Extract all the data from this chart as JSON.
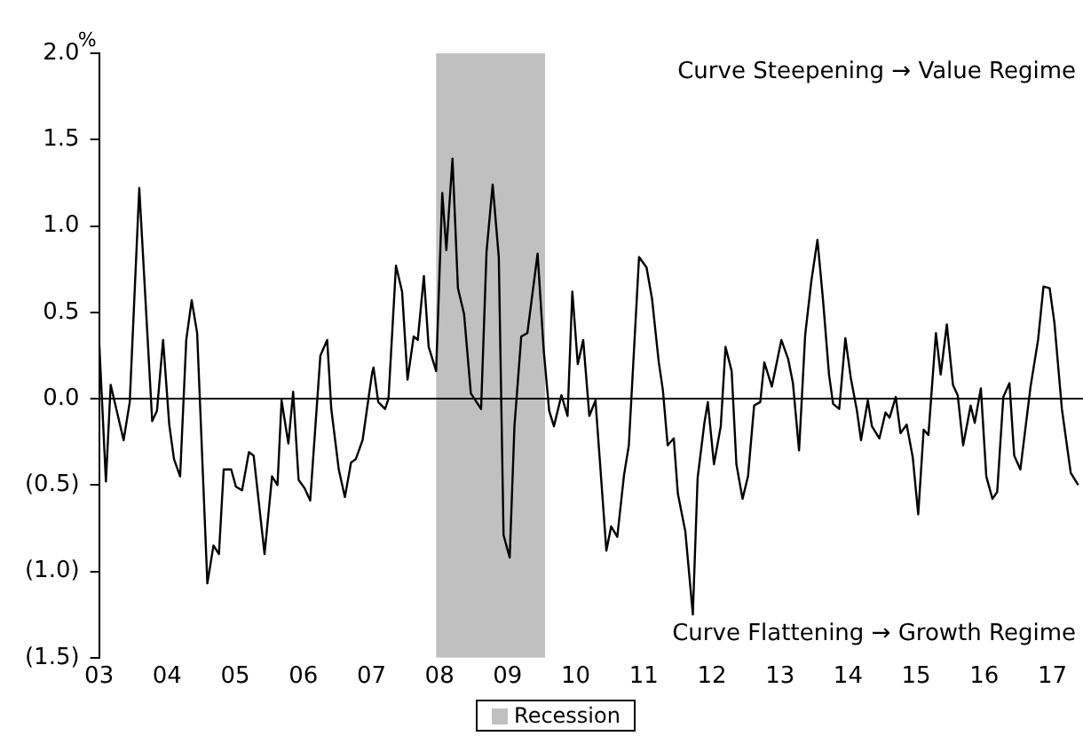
{
  "chart_data": {
    "type": "line",
    "ylabel": "%",
    "x": [
      2003.0,
      2003.1,
      2003.17,
      2003.36,
      2003.45,
      2003.59,
      2003.69,
      2003.78,
      2003.85,
      2003.94,
      2004.03,
      2004.1,
      2004.19,
      2004.28,
      2004.36,
      2004.44,
      2004.59,
      2004.68,
      2004.76,
      2004.83,
      2004.94,
      2005.01,
      2005.1,
      2005.2,
      2005.27,
      2005.43,
      2005.54,
      2005.62,
      2005.68,
      2005.78,
      2005.85,
      2005.93,
      2006.02,
      2006.1,
      2006.25,
      2006.35,
      2006.41,
      2006.52,
      2006.61,
      2006.7,
      2006.77,
      2006.87,
      2007.01,
      2007.03,
      2007.1,
      2007.2,
      2007.25,
      2007.36,
      2007.45,
      2007.53,
      2007.62,
      2007.68,
      2007.77,
      2007.84,
      2007.95,
      2008.04,
      2008.1,
      2008.19,
      2008.27,
      2008.36,
      2008.46,
      2008.61,
      2008.69,
      2008.78,
      2008.87,
      2008.94,
      2009.03,
      2009.1,
      2009.2,
      2009.29,
      2009.44,
      2009.53,
      2009.61,
      2009.68,
      2009.79,
      2009.88,
      2009.95,
      2010.03,
      2010.11,
      2010.2,
      2010.29,
      2010.45,
      2010.52,
      2010.61,
      2010.71,
      2010.78,
      2010.93,
      2011.04,
      2011.12,
      2011.22,
      2011.28,
      2011.35,
      2011.44,
      2011.5,
      2011.61,
      2011.72,
      2011.79,
      2011.89,
      2011.94,
      2012.03,
      2012.13,
      2012.2,
      2012.29,
      2012.36,
      2012.45,
      2012.53,
      2012.62,
      2012.71,
      2012.77,
      2012.88,
      2013.02,
      2013.12,
      2013.19,
      2013.28,
      2013.37,
      2013.46,
      2013.55,
      2013.63,
      2013.72,
      2013.78,
      2013.87,
      2013.96,
      2014.04,
      2014.13,
      2014.19,
      2014.29,
      2014.35,
      2014.46,
      2014.55,
      2014.61,
      2014.7,
      2014.77,
      2014.86,
      2014.95,
      2015.03,
      2015.11,
      2015.18,
      2015.29,
      2015.36,
      2015.45,
      2015.54,
      2015.61,
      2015.69,
      2015.8,
      2015.86,
      2015.95,
      2016.03,
      2016.12,
      2016.19,
      2016.28,
      2016.37,
      2016.44,
      2016.53,
      2016.68,
      2016.79,
      2016.87,
      2016.96,
      2017.03,
      2017.14,
      2017.27,
      2017.38
    ],
    "series": [
      {
        "color": "#000000",
        "values": [
          0.34,
          -0.48,
          0.08,
          -0.24,
          -0.02,
          1.22,
          0.51,
          -0.13,
          -0.07,
          0.34,
          -0.15,
          -0.35,
          -0.45,
          0.34,
          0.57,
          0.38,
          -1.07,
          -0.85,
          -0.9,
          -0.41,
          -0.41,
          -0.51,
          -0.53,
          -0.31,
          -0.33,
          -0.9,
          -0.45,
          -0.5,
          -0.01,
          -0.26,
          0.04,
          -0.47,
          -0.52,
          -0.59,
          0.25,
          0.34,
          -0.06,
          -0.41,
          -0.57,
          -0.37,
          -0.35,
          -0.24,
          0.15,
          0.18,
          -0.02,
          -0.06,
          0.0,
          0.77,
          0.62,
          0.11,
          0.36,
          0.34,
          0.71,
          0.3,
          0.16,
          1.19,
          0.86,
          1.39,
          0.64,
          0.49,
          0.03,
          -0.06,
          0.85,
          1.24,
          0.82,
          -0.79,
          -0.92,
          -0.16,
          0.36,
          0.38,
          0.84,
          0.28,
          -0.07,
          -0.16,
          0.02,
          -0.1,
          0.62,
          0.2,
          0.34,
          -0.1,
          -0.01,
          -0.88,
          -0.74,
          -0.8,
          -0.44,
          -0.27,
          0.82,
          0.76,
          0.58,
          0.21,
          0.05,
          -0.27,
          -0.23,
          -0.55,
          -0.77,
          -1.25,
          -0.46,
          -0.14,
          -0.02,
          -0.38,
          -0.16,
          0.3,
          0.16,
          -0.38,
          -0.58,
          -0.45,
          -0.04,
          -0.02,
          0.21,
          0.07,
          0.34,
          0.23,
          0.09,
          -0.3,
          0.37,
          0.68,
          0.92,
          0.58,
          0.14,
          -0.03,
          -0.06,
          0.35,
          0.12,
          -0.07,
          -0.24,
          -0.01,
          -0.16,
          -0.23,
          -0.08,
          -0.11,
          0.01,
          -0.2,
          -0.15,
          -0.34,
          -0.67,
          -0.18,
          -0.21,
          0.38,
          0.14,
          0.43,
          0.08,
          0.02,
          -0.27,
          -0.04,
          -0.14,
          0.06,
          -0.45,
          -0.58,
          -0.54,
          0.01,
          0.09,
          -0.33,
          -0.41,
          0.07,
          0.34,
          0.65,
          0.64,
          0.44,
          -0.06,
          -0.43,
          -0.5
        ]
      }
    ],
    "xlim": [
      2003,
      2017.45
    ],
    "xticks": [
      {
        "value": 2003,
        "label": "03"
      },
      {
        "value": 2004,
        "label": "04"
      },
      {
        "value": 2005,
        "label": "05"
      },
      {
        "value": 2006,
        "label": "06"
      },
      {
        "value": 2007,
        "label": "07"
      },
      {
        "value": 2008,
        "label": "08"
      },
      {
        "value": 2009,
        "label": "09"
      },
      {
        "value": 2010,
        "label": "10"
      },
      {
        "value": 2011,
        "label": "11"
      },
      {
        "value": 2012,
        "label": "12"
      },
      {
        "value": 2013,
        "label": "13"
      },
      {
        "value": 2014,
        "label": "14"
      },
      {
        "value": 2015,
        "label": "15"
      },
      {
        "value": 2016,
        "label": "16"
      },
      {
        "value": 2017,
        "label": "17"
      }
    ],
    "ylim": [
      -1.5,
      2.0
    ],
    "yticks": [
      {
        "value": -1.5,
        "label": "(1.5)"
      },
      {
        "value": -1.0,
        "label": "(1.0)"
      },
      {
        "value": -0.5,
        "label": "(0.5)"
      },
      {
        "value": 0,
        "label": "0.0"
      },
      {
        "value": 0.5,
        "label": "0.5"
      },
      {
        "value": 1.0,
        "label": "1.0"
      },
      {
        "value": 1.5,
        "label": "1.5"
      },
      {
        "value": 2.0,
        "label": "2.0"
      }
    ],
    "ref_lines": [
      {
        "axis": "y",
        "value": 0,
        "color": "#000000"
      }
    ],
    "bands": [
      {
        "axis": "x",
        "from": 2007.95,
        "to": 2009.55,
        "label": "Recession",
        "color": "#c0c0c0"
      }
    ],
    "annotations": [
      "Curve Steepening → Value Regime",
      "Curve Flattening → Growth Regime"
    ],
    "legend": "bottom",
    "grid": false,
    "marker": "none",
    "line_style": "solid"
  }
}
